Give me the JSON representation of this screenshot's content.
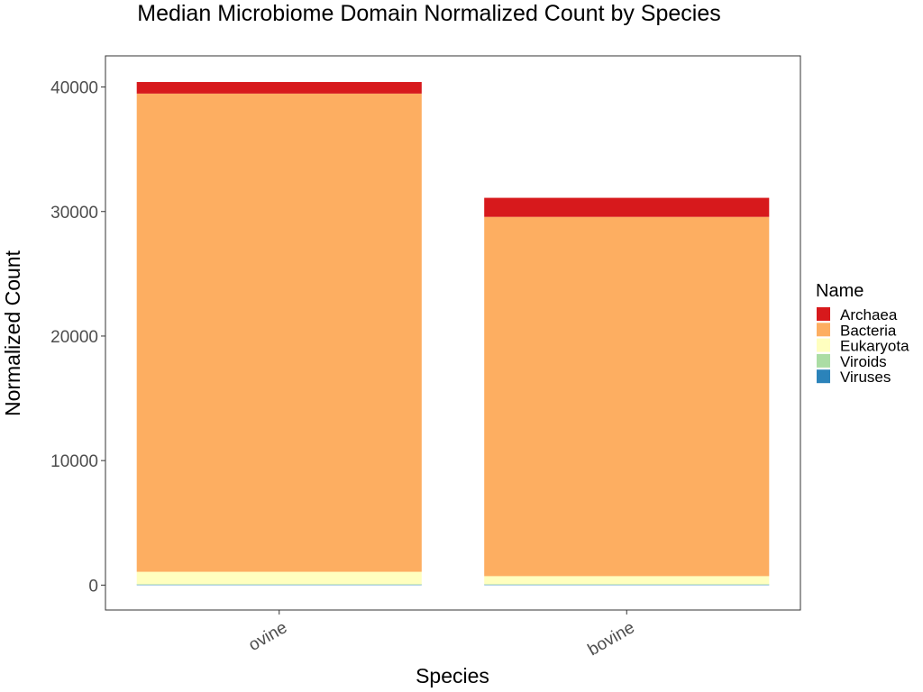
{
  "chart_data": {
    "type": "bar",
    "stacked": true,
    "title": "Median Microbiome Domain Normalized Count by Species",
    "xlabel": "Species",
    "ylabel": "Normalized Count",
    "categories": [
      "ovine",
      "bovine"
    ],
    "ylim": [
      -2000,
      42500
    ],
    "yticks": [
      0,
      10000,
      20000,
      30000,
      40000
    ],
    "grid": false,
    "legend": {
      "title": "Name",
      "position": "right"
    },
    "series": [
      {
        "name": "Viruses",
        "color": "#2b83ba",
        "values": [
          50,
          50
        ]
      },
      {
        "name": "Viroids",
        "color": "#abdda4",
        "values": [
          20,
          20
        ]
      },
      {
        "name": "Eukaryota",
        "color": "#ffffbf",
        "values": [
          1000,
          650
        ]
      },
      {
        "name": "Bacteria",
        "color": "#fdae61",
        "values": [
          38400,
          28850
        ]
      },
      {
        "name": "Archaea",
        "color": "#d7191c",
        "values": [
          930,
          1530
        ]
      }
    ],
    "legend_order": [
      "Archaea",
      "Bacteria",
      "Eukaryota",
      "Viroids",
      "Viruses"
    ]
  }
}
